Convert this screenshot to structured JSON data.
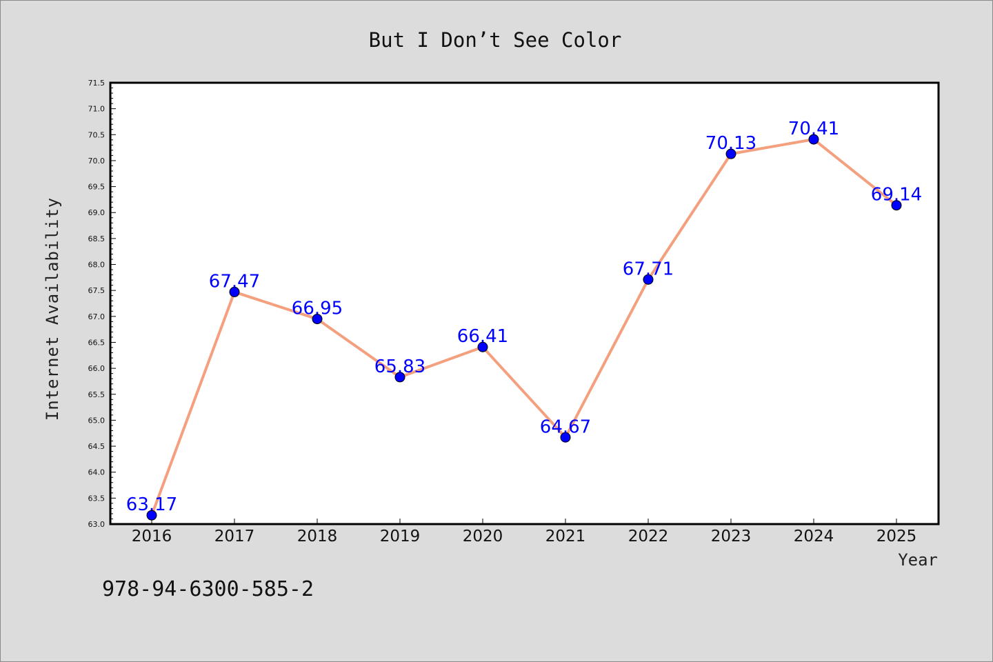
{
  "chart_data": {
    "type": "line",
    "title": "But I Don’t See Color",
    "xlabel": "Year",
    "ylabel": "Internet Availability",
    "categories": [
      "2016",
      "2017",
      "2018",
      "2019",
      "2020",
      "2021",
      "2022",
      "2023",
      "2024",
      "2025"
    ],
    "series": [
      {
        "values": [
          63.17,
          67.47,
          66.95,
          65.83,
          66.41,
          64.67,
          67.71,
          70.13,
          70.41,
          69.14
        ],
        "labels": [
          "63.17",
          "67.47",
          "66.95",
          "65.83",
          "66.41",
          "64.67",
          "67.71",
          "70.13",
          "70.41",
          "69.14"
        ]
      }
    ],
    "ylim": [
      63.0,
      71.5
    ],
    "yticks": [
      "63.0",
      "63.5",
      "64.0",
      "64.5",
      "65.0",
      "65.5",
      "66.0",
      "66.5",
      "67.0",
      "67.5",
      "68.0",
      "68.5",
      "69.0",
      "69.5",
      "70.0",
      "70.5",
      "71.0",
      "71.5"
    ],
    "grid": false,
    "colors": {
      "line": "#f4a07f",
      "marker": "#0000ff",
      "data_label": "#0000ff",
      "page_background": "#dcdcdc",
      "plot_background": "#ffffff"
    }
  },
  "footnote": "978-94-6300-585-2"
}
